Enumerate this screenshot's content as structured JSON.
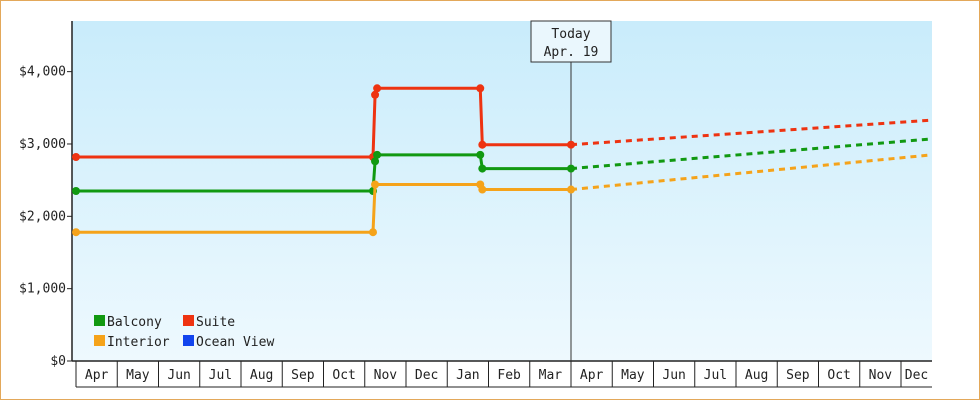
{
  "chart_data": {
    "type": "line",
    "title": "",
    "xlabel": "",
    "ylabel": "",
    "ylim": [
      0,
      4700
    ],
    "y_ticks": [
      {
        "value": 0,
        "label": "$0"
      },
      {
        "value": 1000,
        "label": "$1,000"
      },
      {
        "value": 2000,
        "label": "$2,000"
      },
      {
        "value": 3000,
        "label": "$3,000"
      },
      {
        "value": 4000,
        "label": "$4,000"
      }
    ],
    "months": [
      "Apr",
      "May",
      "Jun",
      "Jul",
      "Aug",
      "Sep",
      "Oct",
      "Nov",
      "Dec",
      "Jan",
      "Feb",
      "Mar",
      "Apr",
      "May",
      "Jun",
      "Jul",
      "Aug",
      "Sep",
      "Oct",
      "Nov",
      "Dec"
    ],
    "today": {
      "line1": "Today",
      "line2": "Apr. 19",
      "month_index": 12
    },
    "grid": false,
    "legend": {
      "placement": "bottom-left",
      "items": [
        {
          "label": "Balcony",
          "color": "#119911"
        },
        {
          "label": "Suite",
          "color": "#ee3311"
        },
        {
          "label": "Interior",
          "color": "#f5a31a"
        },
        {
          "label": "Ocean View",
          "color": "#1144ee"
        }
      ]
    },
    "series": [
      {
        "name": "Suite",
        "color": "#ee3311",
        "points": [
          [
            0,
            2820
          ],
          [
            7.2,
            2820
          ],
          [
            7.25,
            3680
          ],
          [
            7.3,
            3770
          ],
          [
            9.8,
            3770
          ],
          [
            9.85,
            2990
          ],
          [
            12,
            2990
          ]
        ],
        "projection": [
          [
            12,
            2990
          ],
          [
            20.75,
            3330
          ]
        ]
      },
      {
        "name": "Balcony",
        "color": "#119911",
        "points": [
          [
            0,
            2350
          ],
          [
            7.2,
            2350
          ],
          [
            7.25,
            2760
          ],
          [
            7.3,
            2850
          ],
          [
            9.8,
            2850
          ],
          [
            9.85,
            2660
          ],
          [
            12,
            2660
          ]
        ],
        "projection": [
          [
            12,
            2660
          ],
          [
            20.75,
            3070
          ]
        ]
      },
      {
        "name": "Interior",
        "color": "#f5a31a",
        "points": [
          [
            0,
            1780
          ],
          [
            7.2,
            1780
          ],
          [
            7.25,
            2440
          ],
          [
            9.8,
            2440
          ],
          [
            9.85,
            2370
          ],
          [
            12,
            2370
          ]
        ],
        "projection": [
          [
            12,
            2370
          ],
          [
            20.75,
            2850
          ]
        ]
      },
      {
        "name": "Ocean View",
        "color": "#1144ee",
        "points": [],
        "projection": []
      }
    ]
  }
}
